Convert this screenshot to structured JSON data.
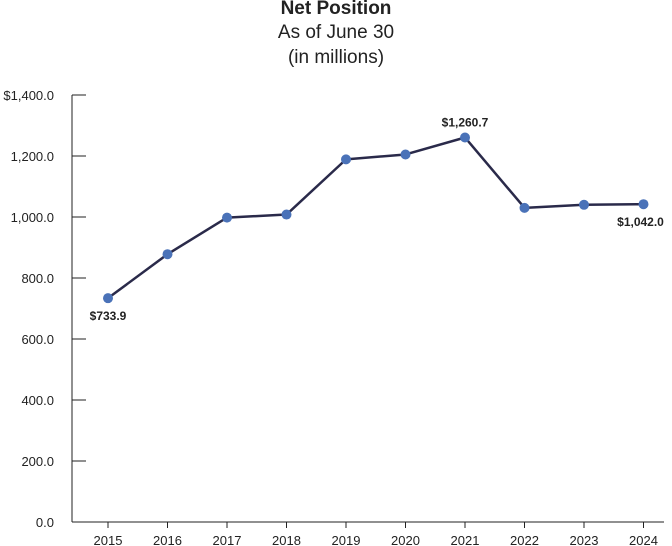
{
  "chart_data": {
    "type": "line",
    "title": "Net Position",
    "subtitle_lines": [
      "As of June 30",
      "(in millions)"
    ],
    "xlabel": "",
    "ylabel": "",
    "categories": [
      "2015",
      "2016",
      "2017",
      "2018",
      "2019",
      "2020",
      "2021",
      "2022",
      "2023",
      "2024"
    ],
    "series": [
      {
        "values": [
          733.9,
          878,
          998,
          1008,
          1189,
          1205,
          1260.7,
          1030,
          1040,
          1042.0
        ]
      }
    ],
    "ylim": [
      0,
      1400
    ],
    "yticks": [
      0,
      200,
      400,
      600,
      800,
      1000,
      1200,
      1400
    ],
    "ytick_labels": [
      "0.0",
      "200.0",
      "400.0",
      "600.0",
      "800.0",
      "1,000.0",
      "1,200.0",
      "$1,400.0"
    ],
    "annotations": [
      {
        "index": 0,
        "text": "$733.9",
        "placement": "below"
      },
      {
        "index": 6,
        "text": "$1,260.7",
        "placement": "above"
      },
      {
        "index": 9,
        "text": "$1,042.0",
        "placement": "below"
      }
    ],
    "grid": false,
    "line_color": "#2a2a4a",
    "marker_color": "#4a72b8"
  }
}
